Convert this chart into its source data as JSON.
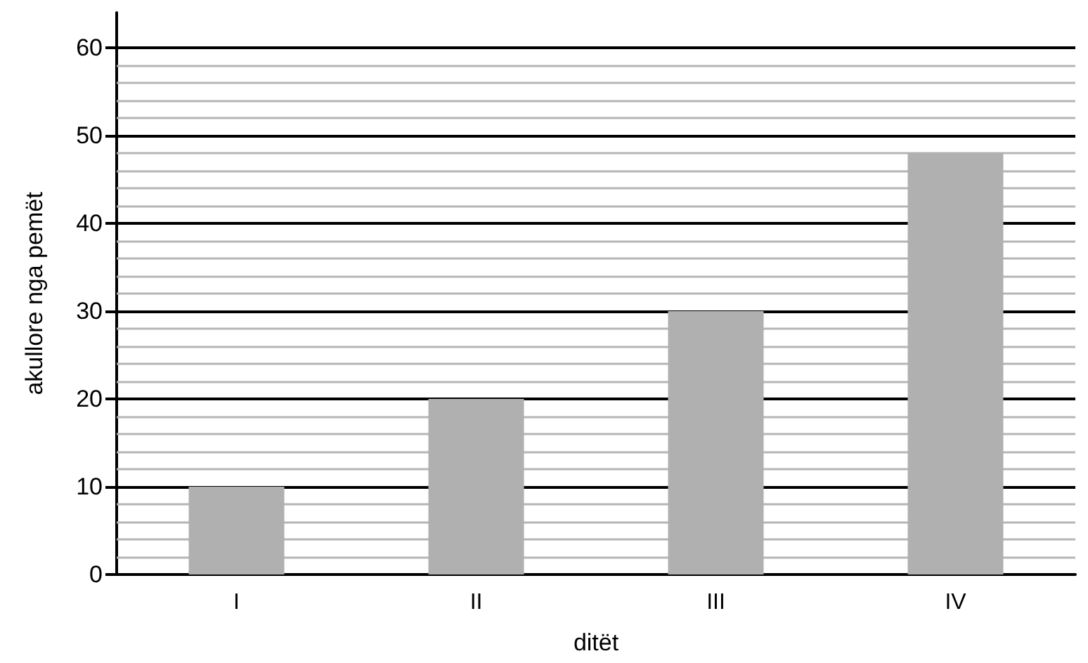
{
  "chart_data": {
    "type": "bar",
    "xlabel": "ditët",
    "ylabel": "akullore nga pemët",
    "categories": [
      "I",
      "II",
      "III",
      "IV"
    ],
    "values": [
      10,
      20,
      30,
      48
    ],
    "color": "#b0b0b0",
    "ylim": [
      0,
      64
    ],
    "yticks": [
      0,
      {
        "value": 2,
        "label": null
      },
      {
        "value": 4,
        "label": null
      },
      {
        "value": 6,
        "label": null
      },
      {
        "value": 8,
        "label": null
      },
      10,
      {
        "value": 12,
        "label": null
      },
      {
        "value": 14,
        "label": null
      },
      {
        "value": 16,
        "label": null
      },
      {
        "value": 18,
        "label": null
      },
      20,
      {
        "value": 22,
        "label": null
      },
      {
        "value": 24,
        "label": null
      },
      {
        "value": 26,
        "label": null
      },
      {
        "value": 28,
        "label": null
      },
      30,
      {
        "value": 32,
        "label": null
      },
      {
        "value": 34,
        "label": null
      },
      {
        "value": 36,
        "label": null
      },
      {
        "value": 38,
        "label": null
      },
      40,
      {
        "value": 42,
        "label": null
      },
      {
        "value": 44,
        "label": null
      },
      {
        "value": 46,
        "label": null
      },
      {
        "value": 48,
        "label": null
      },
      50,
      {
        "value": 52,
        "label": null
      },
      {
        "value": 54,
        "label": null
      },
      {
        "value": 56,
        "label": null
      },
      {
        "value": 58,
        "label": null
      },
      60
    ],
    "grid": true
  }
}
